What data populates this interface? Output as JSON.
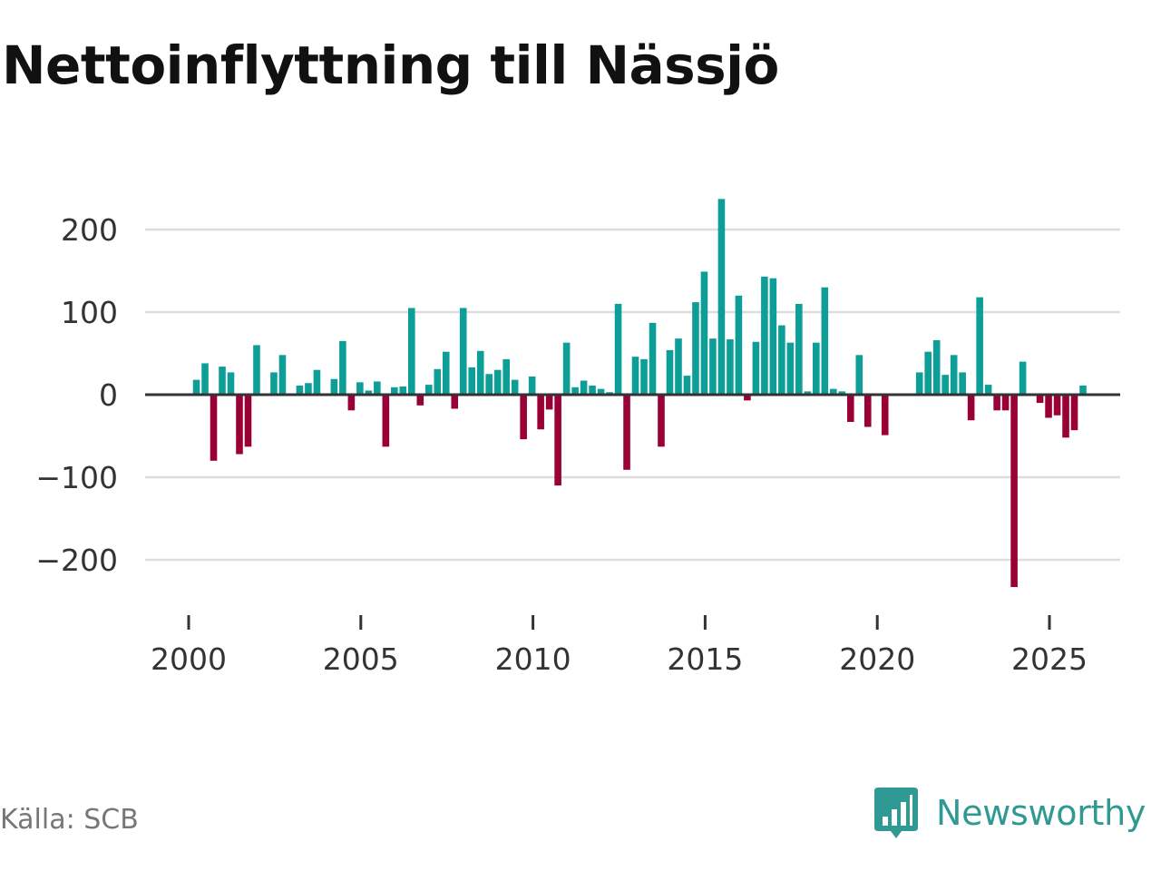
{
  "title": "Nettoinflyttning till Nässjö",
  "source": "Källa: SCB",
  "brand": {
    "name": "Newsworthy",
    "icon": "newsworthy-logo-icon",
    "color": "#2f9a93"
  },
  "colors": {
    "positive": "#0e9e98",
    "negative": "#9a0036",
    "grid": "#dddddd",
    "zero_line": "#333333",
    "axis_text": "#333333"
  },
  "chart_data": {
    "type": "bar",
    "title": "Nettoinflyttning till Nässjö",
    "xlabel": "",
    "ylabel": "",
    "ylim": [
      -260,
      260
    ],
    "yticks": [
      200,
      100,
      0,
      -100,
      -200
    ],
    "ytick_labels": [
      "200",
      "100",
      "0",
      "−100",
      "−200"
    ],
    "xticks": [
      2000,
      2005,
      2010,
      2015,
      2020,
      2025
    ],
    "xtick_labels": [
      "2000",
      "2005",
      "2010",
      "2015",
      "2020",
      "2025"
    ],
    "x_range": [
      1998.6,
      2027.1
    ],
    "frequency": "quarterly",
    "start_year": 2000,
    "values": [
      18,
      38,
      -80,
      34,
      27,
      -72,
      -63,
      60,
      0,
      27,
      48,
      0,
      11,
      14,
      30,
      0,
      19,
      65,
      -19,
      15,
      5,
      16,
      -63,
      9,
      10,
      105,
      -13,
      12,
      31,
      52,
      -17,
      105,
      33,
      53,
      25,
      30,
      43,
      18,
      -54,
      22,
      -42,
      -18,
      -110,
      63,
      9,
      17,
      11,
      7,
      3,
      110,
      -91,
      46,
      43,
      87,
      -63,
      54,
      68,
      23,
      112,
      149,
      68,
      237,
      67,
      120,
      -7,
      64,
      143,
      141,
      84,
      63,
      110,
      4,
      63,
      130,
      7,
      4,
      -33,
      48,
      -39,
      0,
      -49,
      0,
      0,
      0,
      27,
      52,
      66,
      24,
      48,
      27,
      -31,
      118,
      12,
      -19,
      -19,
      -233,
      40,
      0,
      -10,
      -28,
      -25,
      -52,
      -43,
      11
    ]
  }
}
